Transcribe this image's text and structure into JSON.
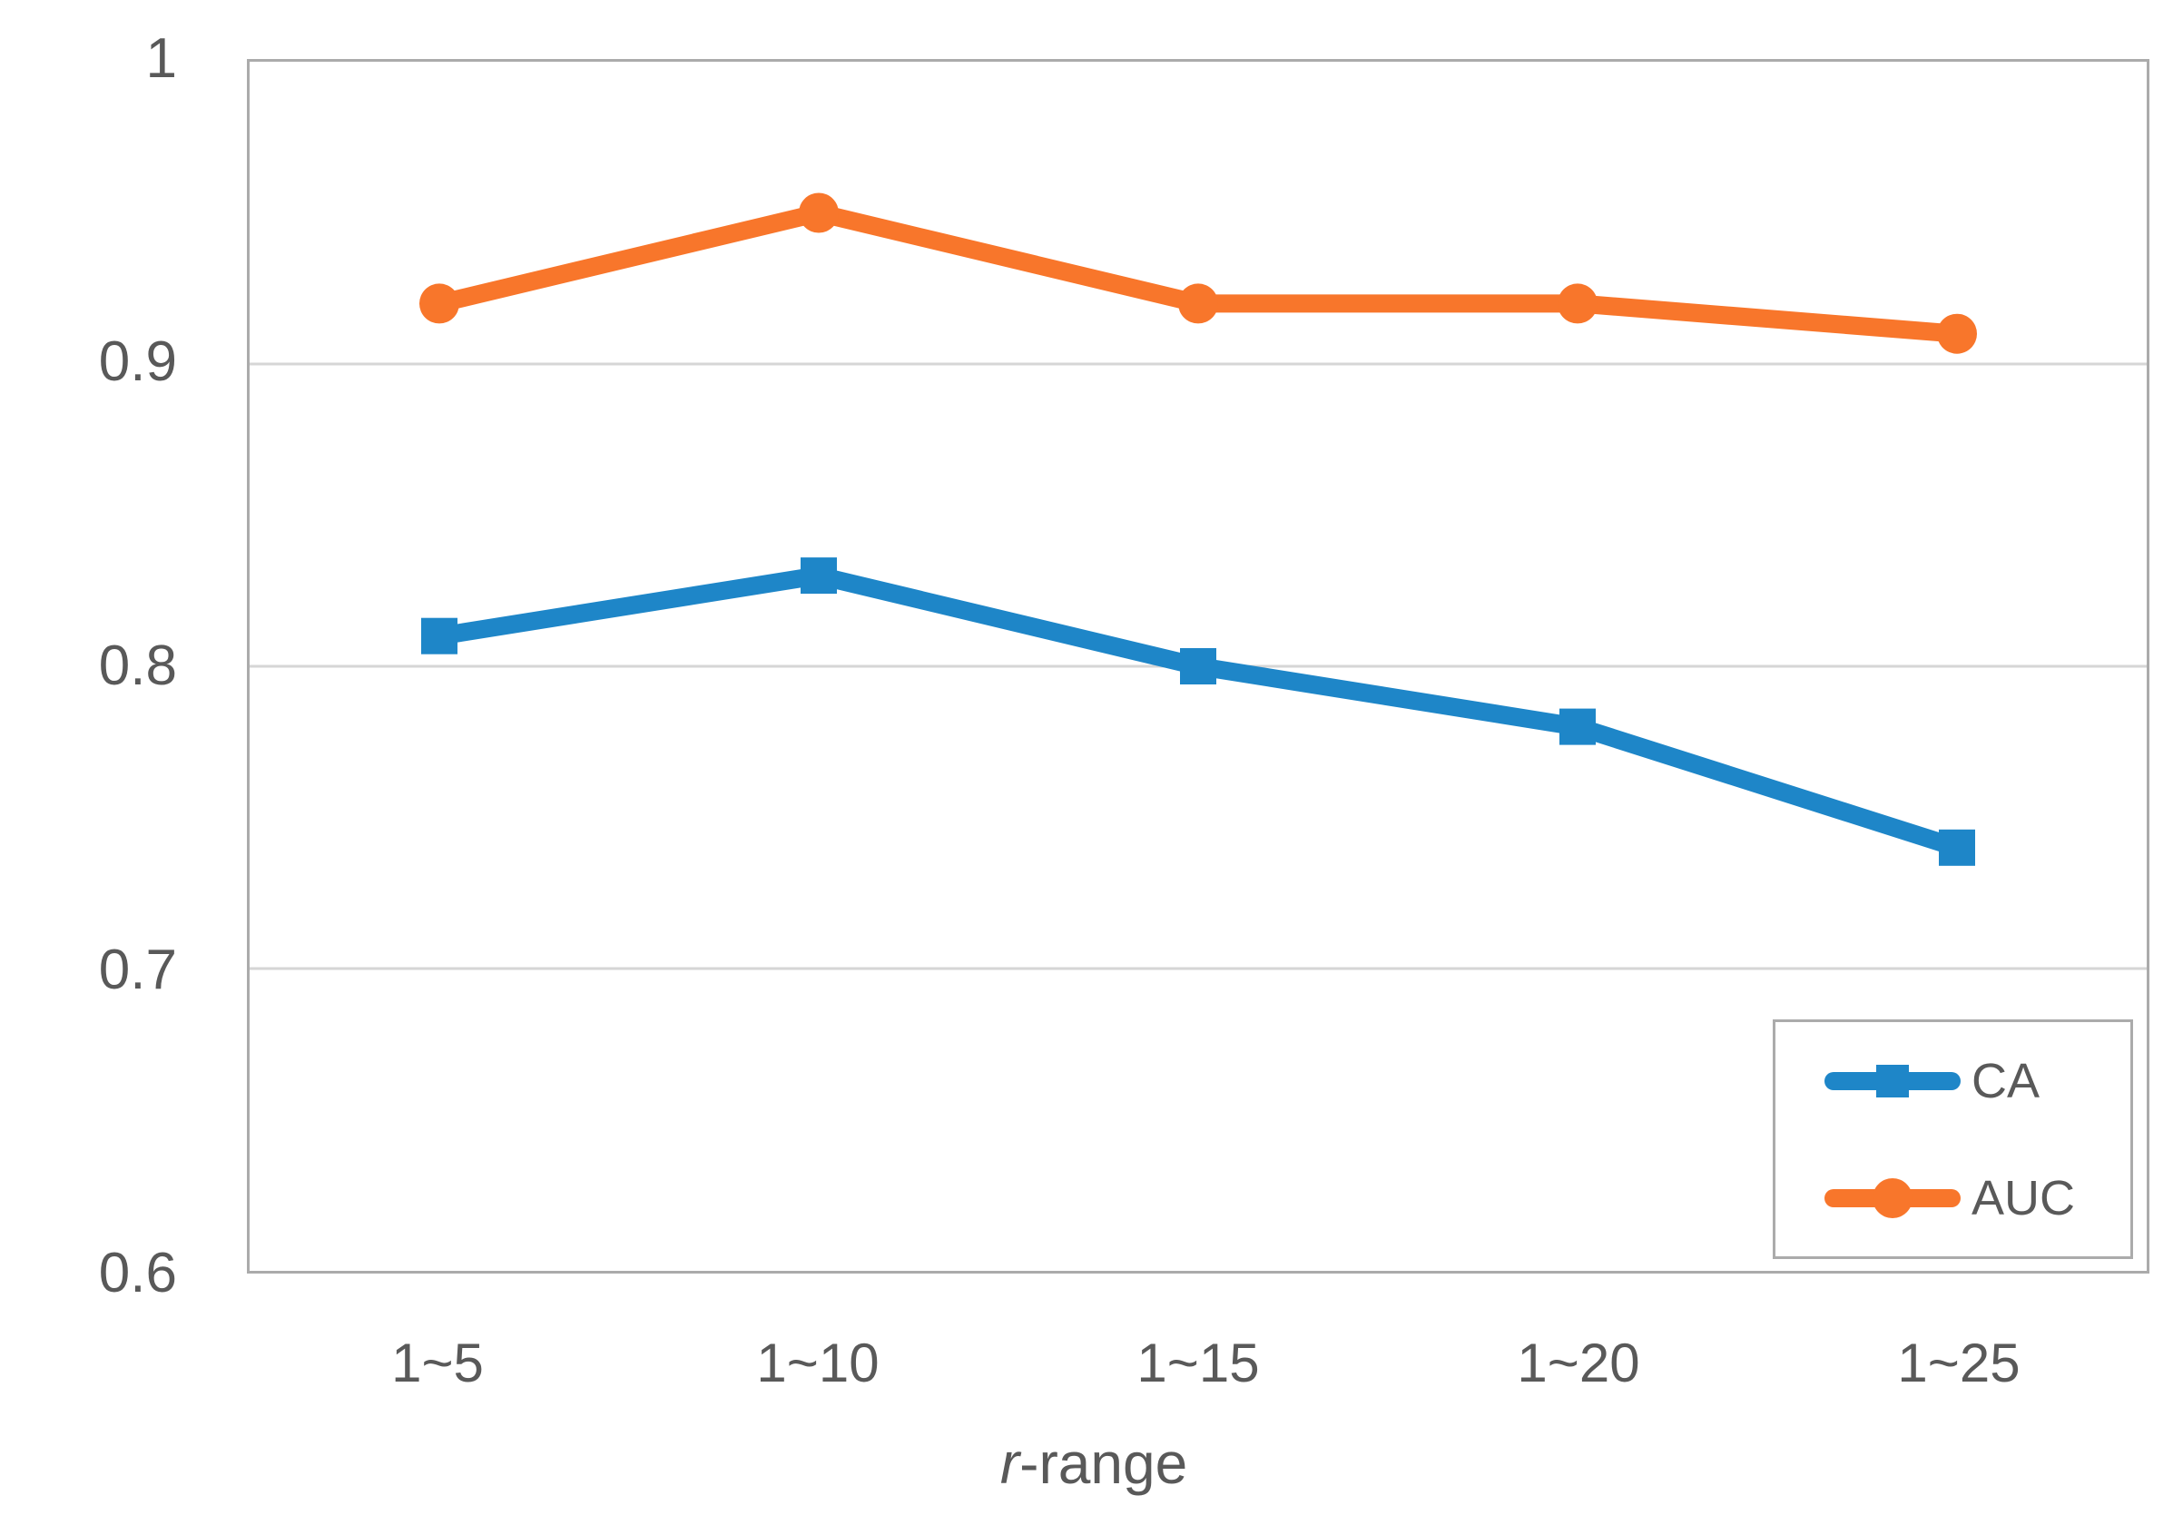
{
  "chart_data": {
    "type": "line",
    "categories": [
      "1~5",
      "1~10",
      "1~15",
      "1~20",
      "1~25"
    ],
    "series": [
      {
        "name": "CA",
        "marker": "square",
        "color": "#1e86c8",
        "values": [
          0.81,
          0.83,
          0.8,
          0.78,
          0.74
        ]
      },
      {
        "name": "AUC",
        "marker": "circle",
        "color": "#f8762b",
        "values": [
          0.92,
          0.95,
          0.92,
          0.92,
          0.91
        ]
      }
    ],
    "xlabel": "r-range",
    "xlabel_italic": "r",
    "xlabel_rest": "-range",
    "ylabel": "",
    "ylim": [
      0.6,
      1.0
    ],
    "y_ticks": [
      1,
      0.9,
      0.8,
      0.7,
      0.6
    ],
    "y_tick_labels": [
      "1",
      "0.9",
      "0.8",
      "0.7",
      "0.6"
    ],
    "gridline_values": [
      0.9,
      0.8,
      0.7
    ],
    "grid": "horizontal",
    "legend_position": "bottom-right",
    "colors": {
      "text": "#595959",
      "gridline": "#d6d6d6",
      "plot_border": "#ababab",
      "background": "#ffffff"
    }
  }
}
